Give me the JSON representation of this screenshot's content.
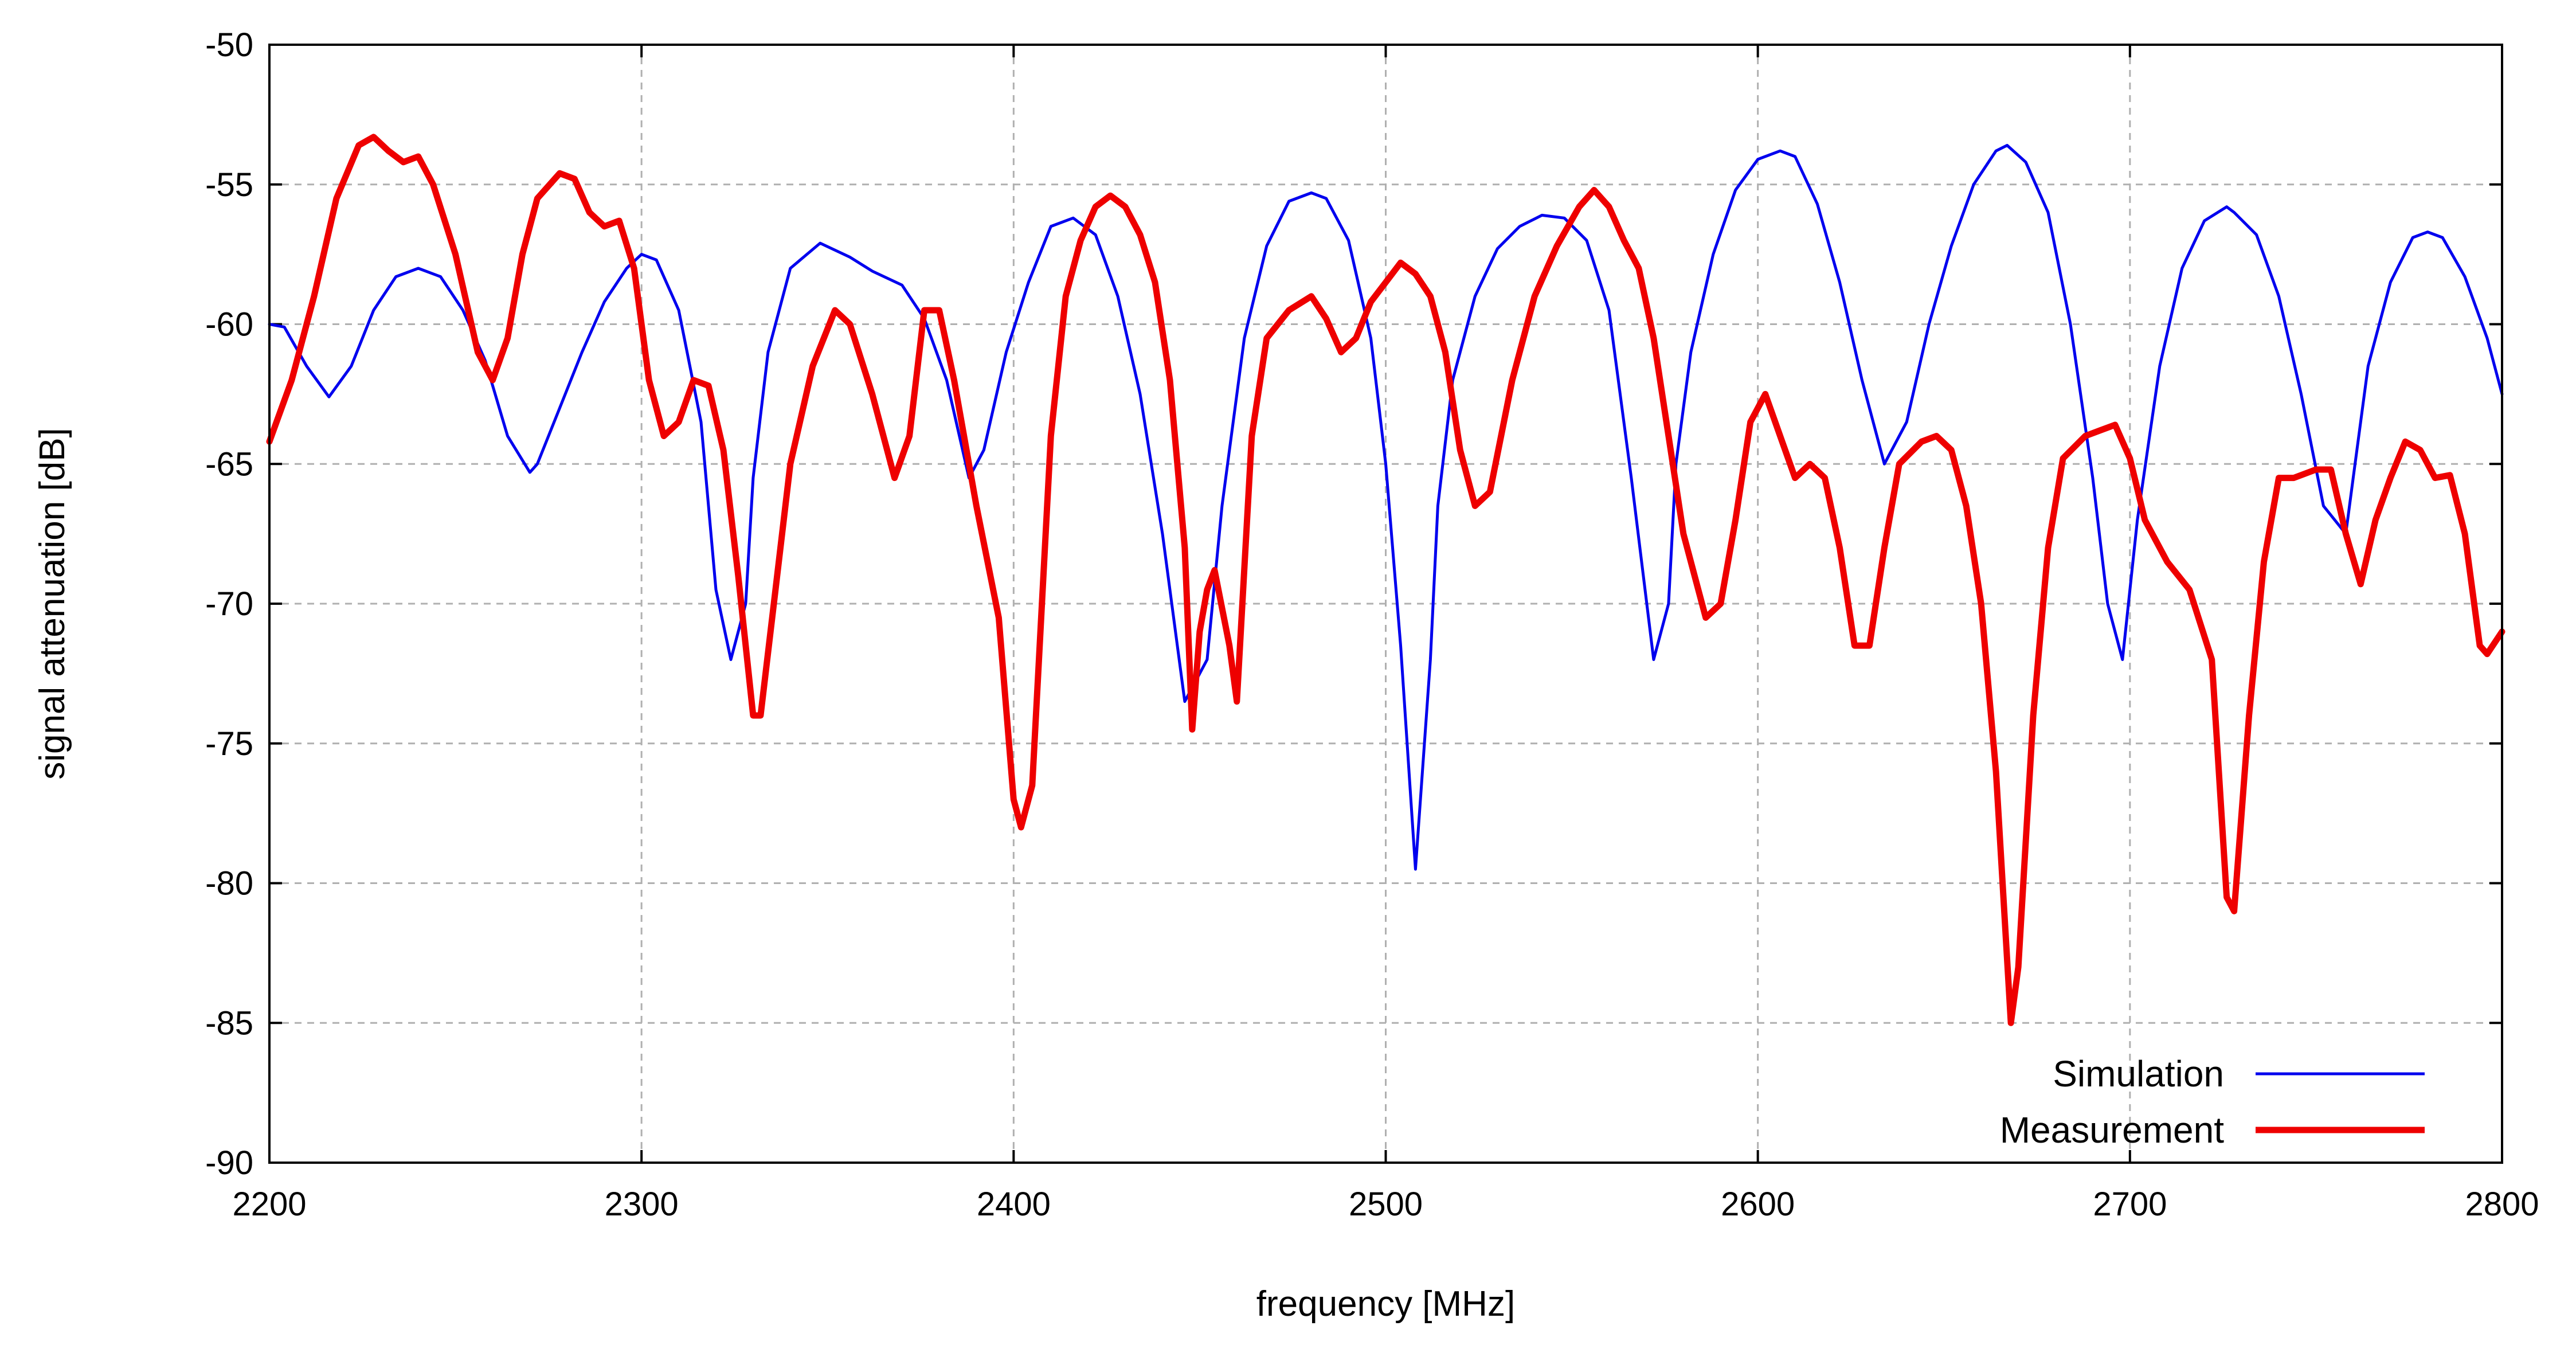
{
  "chart_data": {
    "type": "line",
    "title": "",
    "xlabel": "frequency [MHz]",
    "ylabel": "signal attenuation [dB]",
    "xlim": [
      2200,
      2800
    ],
    "ylim": [
      -90,
      -50
    ],
    "xticks": [
      2200,
      2300,
      2400,
      2500,
      2600,
      2700,
      2800
    ],
    "yticks": [
      -50,
      -55,
      -60,
      -65,
      -70,
      -75,
      -80,
      -85,
      -90
    ],
    "xtick_labels": [
      "2200",
      "2300",
      "2400",
      "2500",
      "2600",
      "2700",
      "2800"
    ],
    "ytick_labels": [
      "-50",
      "-55",
      "-60",
      "-65",
      "-70",
      "-75",
      "-80",
      "-85",
      "-90"
    ],
    "grid": true,
    "legend_position": "bottom-right",
    "series": [
      {
        "name": "Simulation",
        "color": "#0000ee",
        "x": [
          2200,
          2204,
          2210,
          2216,
          2222,
          2228,
          2234,
          2240,
          2246,
          2252,
          2258,
          2264,
          2270,
          2272,
          2278,
          2284,
          2290,
          2296,
          2300,
          2304,
          2310,
          2316,
          2320,
          2324,
          2328,
          2330,
          2334,
          2340,
          2348,
          2356,
          2362,
          2370,
          2376,
          2382,
          2388,
          2392,
          2398,
          2404,
          2410,
          2416,
          2422,
          2428,
          2434,
          2440,
          2446,
          2450,
          2452,
          2456,
          2462,
          2468,
          2474,
          2480,
          2484,
          2490,
          2496,
          2500,
          2504,
          2508,
          2512,
          2514,
          2518,
          2524,
          2530,
          2536,
          2542,
          2548,
          2554,
          2560,
          2566,
          2572,
          2576,
          2578,
          2582,
          2588,
          2594,
          2600,
          2606,
          2610,
          2616,
          2622,
          2628,
          2634,
          2640,
          2646,
          2652,
          2658,
          2664,
          2667,
          2672,
          2678,
          2684,
          2690,
          2694,
          2698,
          2702,
          2708,
          2714,
          2720,
          2726,
          2728,
          2734,
          2740,
          2746,
          2752,
          2758,
          2760,
          2764,
          2770,
          2776,
          2780,
          2784,
          2790,
          2796,
          2800
        ],
        "y": [
          -60,
          -60.1,
          -61.5,
          -62.6,
          -61.5,
          -59.5,
          -58.3,
          -58.0,
          -58.3,
          -59.5,
          -61.3,
          -64.0,
          -65.3,
          -65.0,
          -63.0,
          -61.0,
          -59.2,
          -58.0,
          -57.5,
          -57.7,
          -59.5,
          -63.5,
          -69.5,
          -72.0,
          -70.0,
          -65.5,
          -61.0,
          -58.0,
          -57.1,
          -57.6,
          -58.1,
          -58.6,
          -59.8,
          -62.0,
          -65.5,
          -64.5,
          -61.0,
          -58.5,
          -56.5,
          -56.2,
          -56.8,
          -59.0,
          -62.5,
          -67.5,
          -73.5,
          -72.5,
          -72.0,
          -66.5,
          -60.5,
          -57.2,
          -55.6,
          -55.3,
          -55.5,
          -57.0,
          -60.5,
          -65.0,
          -71.5,
          -79.5,
          -72.0,
          -66.5,
          -62.0,
          -59.0,
          -57.3,
          -56.5,
          -56.1,
          -56.2,
          -57.0,
          -59.5,
          -65.5,
          -72.0,
          -70.0,
          -65.0,
          -61.0,
          -57.5,
          -55.2,
          -54.1,
          -53.8,
          -54.0,
          -55.7,
          -58.5,
          -62.0,
          -65.0,
          -63.5,
          -60.0,
          -57.2,
          -55.0,
          -53.8,
          -53.6,
          -54.2,
          -56.0,
          -60.0,
          -65.5,
          -70.0,
          -72.0,
          -67.0,
          -61.5,
          -58.0,
          -56.3,
          -55.8,
          -56.0,
          -56.8,
          -59.0,
          -62.5,
          -66.5,
          -67.5,
          -65.5,
          -61.5,
          -58.5,
          -56.9,
          -56.7,
          -56.9,
          -58.3,
          -60.5,
          -62.5
        ]
      },
      {
        "name": "Measurement",
        "color": "#ee0000",
        "x": [
          2200,
          2206,
          2212,
          2218,
          2224,
          2228,
          2232,
          2236,
          2240,
          2244,
          2250,
          2256,
          2260,
          2264,
          2268,
          2272,
          2278,
          2282,
          2286,
          2290,
          2294,
          2298,
          2302,
          2306,
          2310,
          2314,
          2318,
          2322,
          2326,
          2330,
          2332,
          2336,
          2340,
          2346,
          2352,
          2356,
          2362,
          2368,
          2372,
          2376,
          2380,
          2384,
          2390,
          2396,
          2400,
          2402,
          2405,
          2410,
          2414,
          2418,
          2422,
          2426,
          2430,
          2434,
          2438,
          2442,
          2446,
          2448,
          2450,
          2452,
          2454,
          2458,
          2460,
          2464,
          2468,
          2474,
          2480,
          2484,
          2488,
          2492,
          2496,
          2500,
          2504,
          2508,
          2512,
          2516,
          2520,
          2524,
          2528,
          2534,
          2540,
          2546,
          2552,
          2556,
          2560,
          2564,
          2568,
          2572,
          2576,
          2580,
          2586,
          2590,
          2594,
          2598,
          2602,
          2606,
          2610,
          2614,
          2618,
          2622,
          2626,
          2630,
          2634,
          2638,
          2644,
          2648,
          2652,
          2656,
          2660,
          2664,
          2668,
          2670,
          2674,
          2678,
          2682,
          2688,
          2692,
          2696,
          2700,
          2704,
          2710,
          2716,
          2722,
          2726,
          2728,
          2732,
          2736,
          2740,
          2744,
          2750,
          2754,
          2758,
          2762,
          2766,
          2770,
          2774,
          2778,
          2782,
          2786,
          2790,
          2794,
          2796,
          2800
        ],
        "y": [
          -64.2,
          -62.0,
          -59.0,
          -55.5,
          -53.6,
          -53.3,
          -53.8,
          -54.2,
          -54.0,
          -55.0,
          -57.5,
          -61.0,
          -62.0,
          -60.5,
          -57.5,
          -55.5,
          -54.6,
          -54.8,
          -56.0,
          -56.5,
          -56.3,
          -58.0,
          -62.0,
          -64.0,
          -63.5,
          -62.0,
          -62.2,
          -64.5,
          -69.0,
          -74.0,
          -74.0,
          -69.5,
          -65.0,
          -61.5,
          -59.5,
          -60.0,
          -62.5,
          -65.5,
          -64.0,
          -59.5,
          -59.5,
          -62.0,
          -66.5,
          -70.5,
          -77.0,
          -78.0,
          -76.5,
          -64.0,
          -59.0,
          -57.0,
          -55.8,
          -55.4,
          -55.8,
          -56.8,
          -58.5,
          -62.0,
          -68.0,
          -74.5,
          -71.0,
          -69.5,
          -68.8,
          -71.5,
          -73.5,
          -64.0,
          -60.5,
          -59.5,
          -59.0,
          -59.8,
          -61.0,
          -60.5,
          -59.2,
          -58.5,
          -57.8,
          -58.2,
          -59.0,
          -61.0,
          -64.5,
          -66.5,
          -66.0,
          -62.0,
          -59.0,
          -57.2,
          -55.8,
          -55.2,
          -55.8,
          -57.0,
          -58.0,
          -60.5,
          -64.0,
          -67.5,
          -70.5,
          -70.0,
          -67.0,
          -63.5,
          -62.5,
          -64.0,
          -65.5,
          -65.0,
          -65.5,
          -68.0,
          -71.5,
          -71.5,
          -68.0,
          -65.0,
          -64.2,
          -64.0,
          -64.5,
          -66.5,
          -70.0,
          -76.0,
          -85.0,
          -83.0,
          -74.0,
          -68.0,
          -64.8,
          -64.0,
          -63.8,
          -63.6,
          -64.8,
          -67.0,
          -68.5,
          -69.5,
          -72.0,
          -80.5,
          -81.0,
          -74.0,
          -68.5,
          -65.5,
          -65.5,
          -65.2,
          -65.2,
          -67.5,
          -69.3,
          -67.0,
          -65.5,
          -64.2,
          -64.5,
          -65.5,
          -65.4,
          -67.5,
          -71.5,
          -71.8,
          -71.0
        ]
      }
    ]
  }
}
